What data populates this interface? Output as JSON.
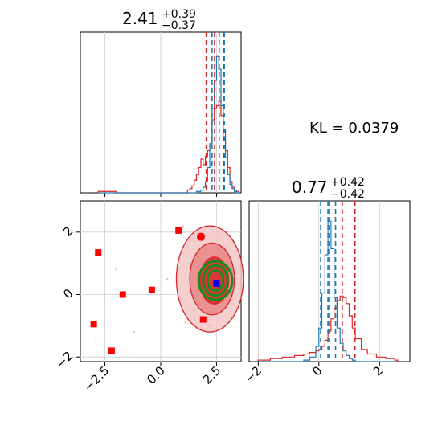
{
  "kl_label": "KL = 0.0379",
  "colors": {
    "blue": "#1f77b4",
    "red": "#d62728",
    "marker_red": "#ff0000",
    "marker_blue": "#0000ff",
    "contour_green": "#1a8a1a",
    "grid": "#cccccc",
    "axis": "#000000"
  },
  "chart_data": [
    {
      "id": "marginal-param1",
      "type": "histogram",
      "title_value": "2.41",
      "title_plus": "+0.39",
      "title_minus": "−0.37",
      "xlim": [
        -3.6,
        3.6
      ],
      "grid": true,
      "show_x_tick_labels": false,
      "bins": [
        [
          -2.8,
          0.0,
          0.01
        ],
        [
          -2.0,
          0.0,
          0.0
        ],
        [
          1.2,
          0.0,
          0.02
        ],
        [
          1.3,
          0.0,
          0.03
        ],
        [
          1.4,
          0.0,
          0.05
        ],
        [
          1.5,
          0.0,
          0.09
        ],
        [
          1.6,
          0.01,
          0.13
        ],
        [
          1.7,
          0.01,
          0.18
        ],
        [
          1.8,
          0.02,
          0.24
        ],
        [
          1.9,
          0.04,
          0.2
        ],
        [
          2.0,
          0.08,
          0.26
        ],
        [
          2.1,
          0.18,
          0.3
        ],
        [
          2.2,
          0.35,
          0.34
        ],
        [
          2.3,
          0.6,
          0.52
        ],
        [
          2.4,
          0.8,
          0.6
        ],
        [
          2.5,
          0.97,
          0.62
        ],
        [
          2.6,
          0.88,
          0.65
        ],
        [
          2.7,
          0.62,
          0.55
        ],
        [
          2.8,
          0.4,
          0.45
        ],
        [
          2.9,
          0.25,
          0.3
        ],
        [
          3.0,
          0.13,
          0.18
        ],
        [
          3.1,
          0.06,
          0.08
        ],
        [
          3.2,
          0.03,
          0.04
        ],
        [
          3.3,
          0.01,
          0.02
        ],
        [
          3.4,
          0.0,
          0.01
        ]
      ],
      "blue_quantiles": [
        2.3,
        2.62,
        2.85
      ],
      "red_quantiles": [
        2.04,
        2.41,
        2.8
      ]
    },
    {
      "id": "marginal-param2",
      "type": "histogram",
      "title_value": "0.77",
      "title_plus": "+0.42",
      "title_minus": "−0.42",
      "xlim": [
        -2.3,
        3.0
      ],
      "xticks": [
        "−2",
        "0",
        "2"
      ],
      "xtick_values": [
        -2,
        0,
        2
      ],
      "grid": true,
      "bins": [
        [
          -2.0,
          0.0,
          0.01
        ],
        [
          -1.6,
          0.0,
          0.02
        ],
        [
          -1.2,
          0.0,
          0.03
        ],
        [
          -0.8,
          0.0,
          0.04
        ],
        [
          -0.5,
          0.01,
          0.05
        ],
        [
          -0.3,
          0.03,
          0.06
        ],
        [
          -0.1,
          0.1,
          0.07
        ],
        [
          0.0,
          0.22,
          0.08
        ],
        [
          0.1,
          0.45,
          0.1
        ],
        [
          0.2,
          0.7,
          0.14
        ],
        [
          0.3,
          0.92,
          0.2
        ],
        [
          0.4,
          0.74,
          0.28
        ],
        [
          0.5,
          0.42,
          0.35
        ],
        [
          0.6,
          0.22,
          0.4
        ],
        [
          0.7,
          0.12,
          0.43
        ],
        [
          0.8,
          0.07,
          0.42
        ],
        [
          0.9,
          0.04,
          0.38
        ],
        [
          1.0,
          0.02,
          0.3
        ],
        [
          1.1,
          0.01,
          0.22
        ],
        [
          1.2,
          0.0,
          0.15
        ],
        [
          1.4,
          0.0,
          0.08
        ],
        [
          1.6,
          0.0,
          0.05
        ],
        [
          1.9,
          0.0,
          0.03
        ],
        [
          2.2,
          0.0,
          0.02
        ],
        [
          2.5,
          0.0,
          0.01
        ]
      ],
      "blue_quantiles": [
        0.06,
        0.3,
        0.55
      ],
      "red_quantiles": [
        0.35,
        0.77,
        1.19
      ]
    },
    {
      "id": "joint-2d",
      "type": "scatter",
      "xlim": [
        -3.6,
        3.6
      ],
      "ylim": [
        -2.15,
        3.0
      ],
      "xticks": [
        "−2.5",
        "0.0",
        "2.5"
      ],
      "xtick_values": [
        -2.5,
        0.0,
        2.5
      ],
      "yticks": [
        "−2",
        "0",
        "2"
      ],
      "ytick_values": [
        -2,
        0,
        2
      ],
      "grid": true,
      "red_squares": [
        [
          -2.8,
          1.35
        ],
        [
          -1.7,
          0.0
        ],
        [
          -0.4,
          0.15
        ],
        [
          0.8,
          2.05
        ],
        [
          1.8,
          1.85
        ],
        [
          -3.0,
          -0.95
        ],
        [
          -2.2,
          -1.8
        ],
        [
          1.9,
          -0.8
        ]
      ],
      "blue_square": [
        2.5,
        0.35
      ],
      "red_circle": [
        1.8,
        1.85
      ],
      "red_contours": [
        [
          2.2,
          0.5,
          1.5,
          1.7
        ],
        [
          2.3,
          0.5,
          1.0,
          1.15
        ],
        [
          2.4,
          0.45,
          0.65,
          0.75
        ]
      ],
      "green_contours": [
        [
          2.45,
          0.45,
          0.75,
          0.62
        ],
        [
          2.45,
          0.45,
          0.55,
          0.48
        ],
        [
          2.45,
          0.45,
          0.35,
          0.32
        ]
      ]
    }
  ]
}
